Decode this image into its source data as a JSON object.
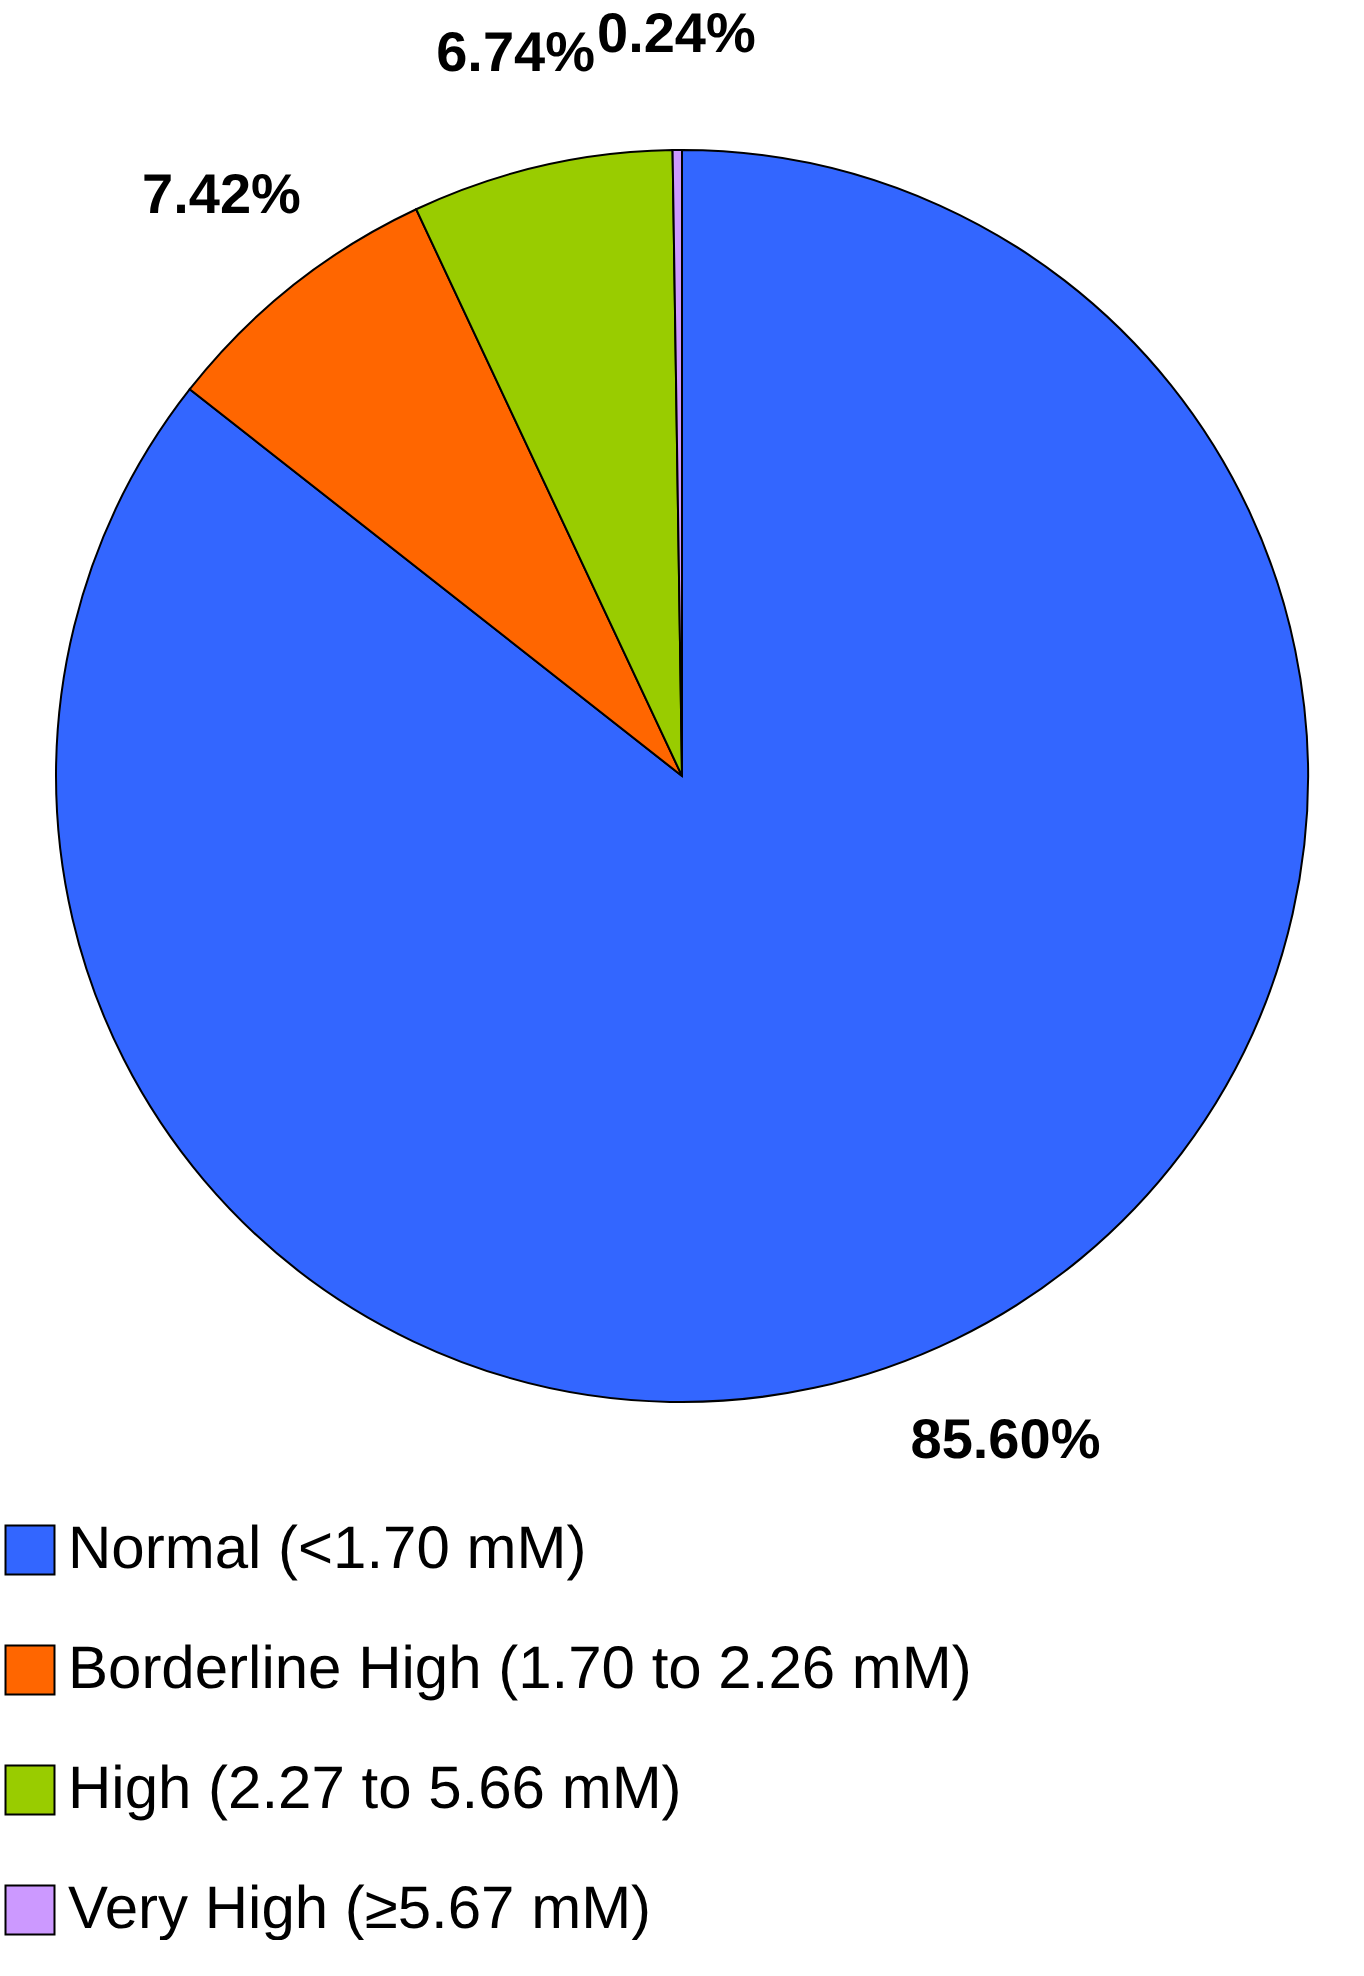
{
  "chart_data": {
    "type": "pie",
    "categories": [
      "Normal (<1.70 mM)",
      "Borderline High (1.70 to 2.26 mM)",
      "High (2.27 to 5.66 mM)",
      "Very High (≥5.67 mM)"
    ],
    "values": [
      85.6,
      7.42,
      6.74,
      0.24
    ],
    "value_labels": [
      "85.60%",
      "7.42%",
      "6.74%",
      "0.24%"
    ],
    "colors": [
      "#3366ff",
      "#ff6600",
      "#99cc00",
      "#cc99ff"
    ],
    "legend": "bottom"
  }
}
